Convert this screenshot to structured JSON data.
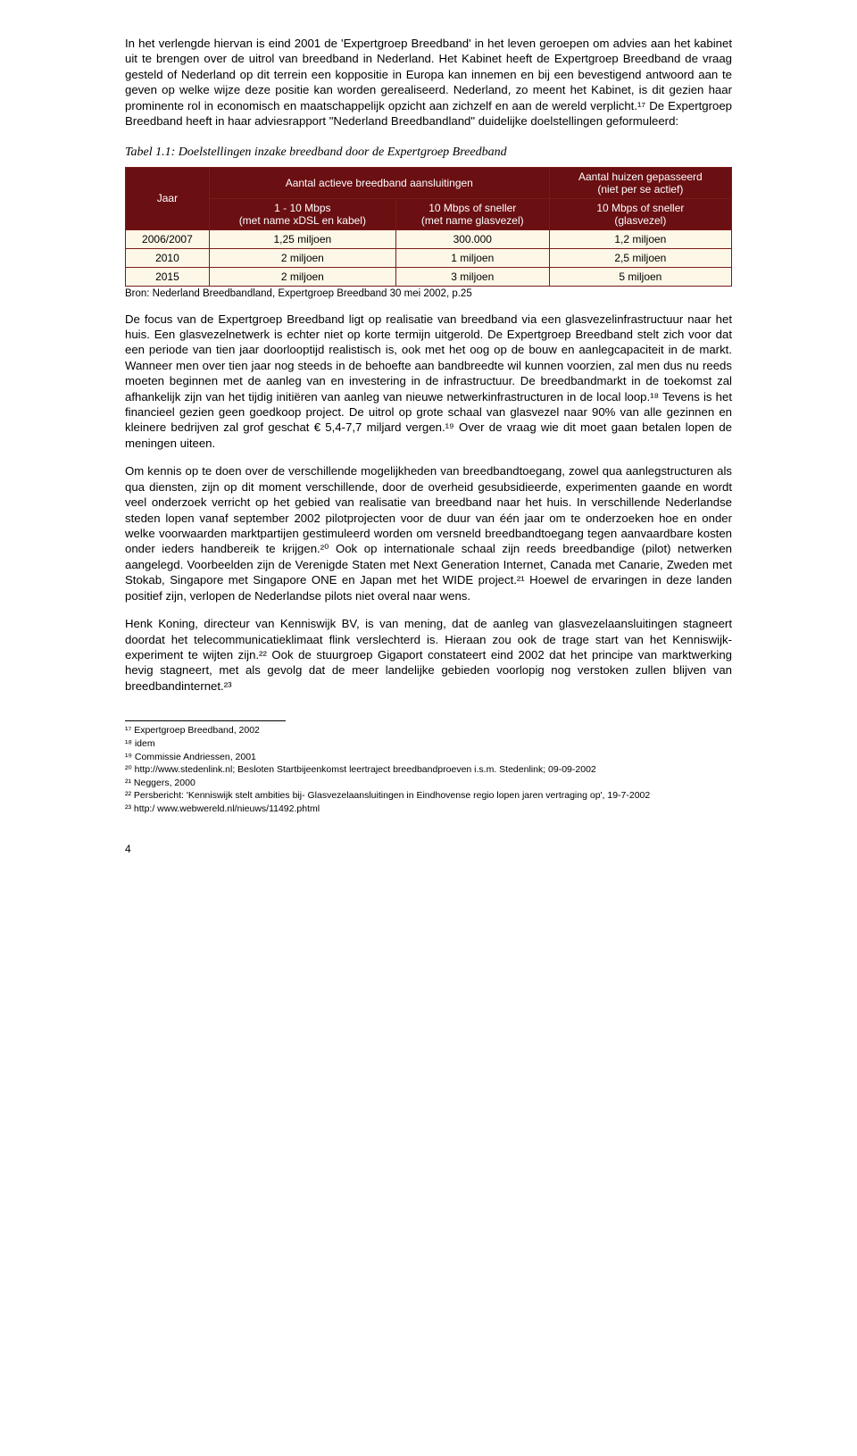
{
  "para1": "In het verlengde hiervan is eind 2001 de 'Expertgroep Breedband' in het leven geroepen om advies aan het kabinet uit te brengen over de uitrol van breedband in Nederland. Het Kabinet heeft de Expertgroep Breedband de vraag gesteld of Nederland op dit terrein een koppositie in Europa kan innemen en bij een bevestigend antwoord aan te geven op welke wijze deze positie kan worden gerealiseerd. Nederland, zo meent het Kabinet, is dit gezien haar prominente rol in economisch en maatschappelijk opzicht aan zichzelf en aan de wereld verplicht.¹⁷ De Expertgroep Breedband heeft in haar adviesrapport \"Nederland Breedbandland\" duidelijke doelstellingen geformuleerd:",
  "table_caption": "Tabel 1.1: Doelstellingen inzake breedband door de Expertgroep Breedband",
  "table": {
    "header_bg": "#6a0f12",
    "body_bg": "#fdf7e7",
    "border_color": "#7a1a1a",
    "head": {
      "col1": "Jaar",
      "span1": "Aantal actieve breedband aansluitingen",
      "col2a": "1 - 10 Mbps\n(met name xDSL en kabel)",
      "col2b": "10 Mbps of sneller\n(met name glasvezel)",
      "col3a": "Aantal huizen gepasseerd\n(niet per se actief)",
      "col3b": "10 Mbps of sneller\n(glasvezel)"
    },
    "rows": [
      [
        "2006/2007",
        "1,25 miljoen",
        "300.000",
        "1,2 miljoen"
      ],
      [
        "2010",
        "2 miljoen",
        "1 miljoen",
        "2,5 miljoen"
      ],
      [
        "2015",
        "2 miljoen",
        "3 miljoen",
        "5 miljoen"
      ]
    ]
  },
  "table_source": "Bron: Nederland Breedbandland, Expertgroep Breedband 30 mei 2002, p.25",
  "para2": "De focus van de Expertgroep Breedband ligt op realisatie van breedband via een glasvezelinfrastructuur naar het huis. Een glasvezelnetwerk is echter niet op korte termijn uitgerold. De Expertgroep Breedband stelt zich voor dat een periode van tien jaar doorlooptijd realistisch is, ook met het oog op de bouw en aanlegcapaciteit in de markt. Wanneer men over tien jaar nog steeds in de behoefte aan bandbreedte wil kunnen voorzien, zal men dus nu reeds moeten beginnen met de aanleg van en investering in de infrastructuur. De breedbandmarkt in de toekomst zal afhankelijk zijn van het tijdig initiëren van aanleg van nieuwe netwerkinfrastructuren in de local loop.¹⁸ Tevens is het financieel gezien geen goedkoop project. De uitrol op grote schaal van glasvezel naar 90% van alle gezinnen en kleinere bedrijven zal grof geschat € 5,4-7,7 miljard vergen.¹⁹ Over de vraag wie dit moet gaan betalen lopen de meningen uiteen.",
  "para3": "Om kennis op te doen over de verschillende mogelijkheden van breedbandtoegang, zowel qua aanlegstructuren als qua diensten, zijn op dit moment verschillende, door de overheid gesubsidieerde, experimenten gaande en wordt veel onderzoek verricht op het gebied van realisatie van breedband naar het huis. In verschillende Nederlandse steden lopen vanaf september 2002 pilotprojecten voor de duur van één jaar om te onderzoeken hoe en onder welke voorwaarden marktpartijen gestimuleerd worden om versneld breedbandtoegang tegen aanvaardbare kosten onder ieders handbereik te krijgen.²⁰ Ook op internationale schaal zijn reeds breedbandige (pilot) netwerken aangelegd. Voorbeelden zijn de Verenigde Staten met Next Generation Internet, Canada met Canarie, Zweden met Stokab, Singapore met Singapore ONE en Japan met het WIDE project.²¹ Hoewel de ervaringen in deze landen positief zijn, verlopen de Nederlandse pilots niet overal naar wens.",
  "para4": "Henk Koning, directeur van Kenniswijk BV, is van mening, dat de aanleg van glasvezelaansluitingen stagneert doordat het telecommunicatieklimaat flink verslechterd is. Hieraan zou ook de trage start van het Kenniswijk-experiment te wijten zijn.²² Ook de stuurgroep Gigaport constateert eind 2002 dat het principe van marktwerking hevig stagneert, met als gevolg dat de meer landelijke gebieden voorlopig nog verstoken zullen blijven van breedbandinternet.²³",
  "footnotes": [
    "¹⁷ Expertgroep Breedband, 2002",
    "¹⁸ idem",
    "¹⁹ Commissie Andriessen, 2001",
    "²⁰ http://www.stedenlink.nl; Besloten Startbijeenkomst leertraject breedbandproeven i.s.m. Stedenlink; 09-09-2002",
    "²¹ Neggers, 2000",
    "²² Persbericht: 'Kenniswijk stelt ambities bij- Glasvezelaansluitingen in Eindhovense regio lopen jaren vertraging op', 19-7-2002",
    "²³ http:/ www.webwereld.nl/nieuws/11492.phtml"
  ],
  "page_number": "4"
}
